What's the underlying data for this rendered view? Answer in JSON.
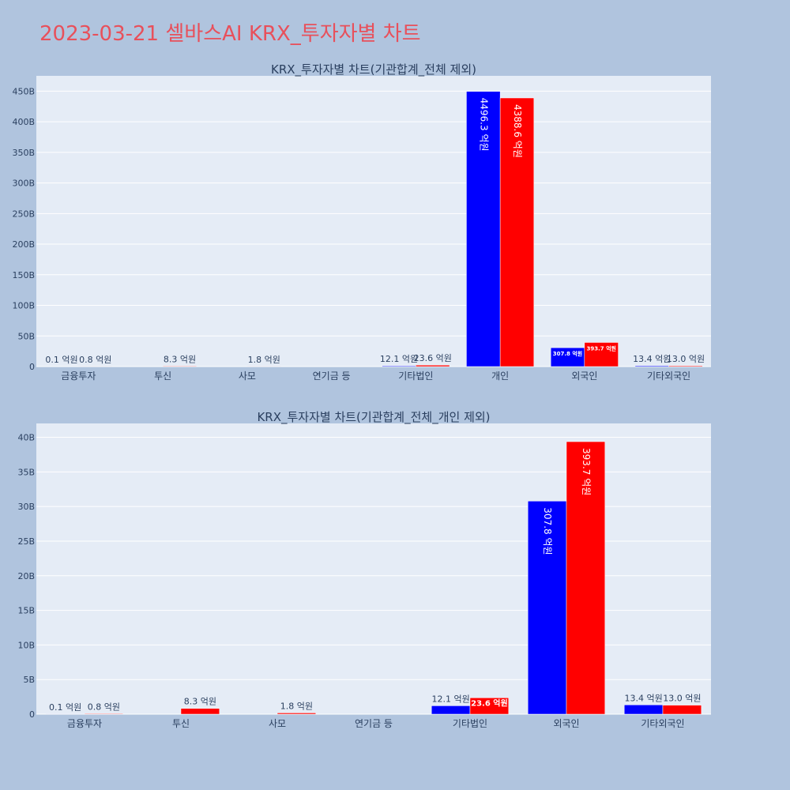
{
  "title": "2023-03-21 셀바스AI KRX_투자자별 차트",
  "colors": {
    "series_a": "#0000ff",
    "series_b": "#ff0000",
    "plot_bg": "#e5ecf6",
    "page_bg": "#b0c4de",
    "title": "#e8505b"
  },
  "chart_data": [
    {
      "type": "bar",
      "title": "KRX_투자자별 차트(기관합계_전체 제외)",
      "categories": [
        "금융투자",
        "투신",
        "사모",
        "연기금 등",
        "기타법인",
        "개인",
        "외국인",
        "기타외국인"
      ],
      "ylim": [
        0,
        475
      ],
      "yticks": [
        0,
        50,
        100,
        150,
        200,
        250,
        300,
        350,
        400,
        450
      ],
      "ytick_labels": [
        "0",
        "50B",
        "100B",
        "150B",
        "200B",
        "250B",
        "300B",
        "350B",
        "400B",
        "450B"
      ],
      "grid": true,
      "series": [
        {
          "color": "#0000ff",
          "values": [
            0.01,
            0,
            0,
            0,
            1.21,
            449.63,
            30.78,
            1.34
          ],
          "labels": [
            "0.1 억원",
            "",
            "",
            "",
            "12.1 억원",
            "4496.3 억원",
            "307.8 억원",
            "13.4 억원"
          ]
        },
        {
          "color": "#ff0000",
          "values": [
            0.08,
            0.83,
            0.18,
            0,
            2.36,
            438.86,
            39.37,
            1.3
          ],
          "labels": [
            "0.8 억원",
            "8.3 억원",
            "1.8 억원",
            "",
            "23.6 억원",
            "4388.6 억원",
            "393.7 억원",
            "13.0 억원"
          ]
        }
      ]
    },
    {
      "type": "bar",
      "title": "KRX_투자자별 차트(기관합계_전체_개인 제외)",
      "categories": [
        "금융투자",
        "투신",
        "사모",
        "연기금 등",
        "기타법인",
        "외국인",
        "기타외국인"
      ],
      "ylim": [
        0,
        42
      ],
      "yticks": [
        0,
        5,
        10,
        15,
        20,
        25,
        30,
        35,
        40
      ],
      "ytick_labels": [
        "0",
        "5B",
        "10B",
        "15B",
        "20B",
        "25B",
        "30B",
        "35B",
        "40B"
      ],
      "grid": true,
      "series": [
        {
          "color": "#0000ff",
          "values": [
            0.01,
            0,
            0,
            0,
            1.21,
            30.78,
            1.34
          ],
          "labels": [
            "0.1 억원",
            "",
            "",
            "",
            "12.1 억원",
            "307.8 억원",
            "13.4 억원"
          ]
        },
        {
          "color": "#ff0000",
          "values": [
            0.08,
            0.83,
            0.18,
            0,
            2.36,
            39.37,
            1.3
          ],
          "labels": [
            "0.8 억원",
            "8.3 억원",
            "1.8 억원",
            "",
            "23.6 억원",
            "393.7 억원",
            "13.0 억원"
          ]
        }
      ]
    }
  ]
}
